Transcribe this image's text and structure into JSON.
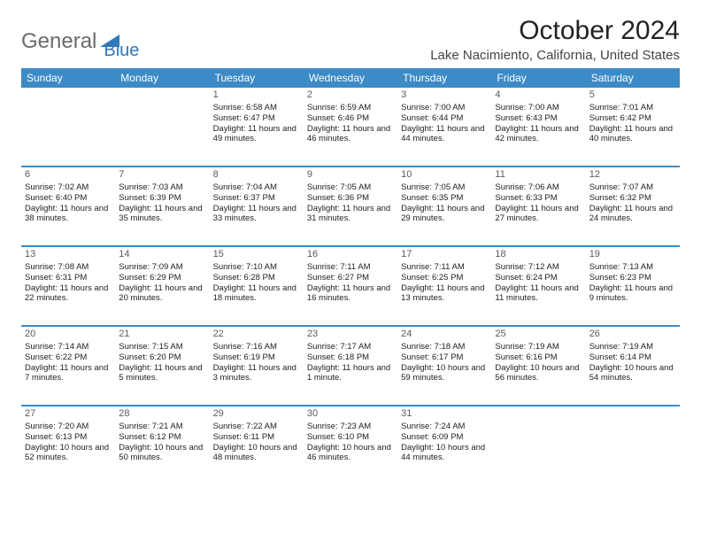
{
  "brand": {
    "part1": "General",
    "part2": "Blue"
  },
  "title": "October 2024",
  "location": "Lake Nacimiento, California, United States",
  "style": {
    "accent": "#3c8ac6",
    "header_text": "#ffffff",
    "body_text": "#222222",
    "weekday_fontsize": 12,
    "cell_fontsize": 9.5,
    "title_fontsize": 30,
    "location_fontsize": 15,
    "row_border_color": "#3c8ac6",
    "row_border_width": 2
  },
  "weekdays": [
    "Sunday",
    "Monday",
    "Tuesday",
    "Wednesday",
    "Thursday",
    "Friday",
    "Saturday"
  ],
  "cells": [
    [
      "",
      "",
      "1|Sunrise: 6:58 AM|Sunset: 6:47 PM|Daylight: 11 hours and 49 minutes.",
      "2|Sunrise: 6:59 AM|Sunset: 6:46 PM|Daylight: 11 hours and 46 minutes.",
      "3|Sunrise: 7:00 AM|Sunset: 6:44 PM|Daylight: 11 hours and 44 minutes.",
      "4|Sunrise: 7:00 AM|Sunset: 6:43 PM|Daylight: 11 hours and 42 minutes.",
      "5|Sunrise: 7:01 AM|Sunset: 6:42 PM|Daylight: 11 hours and 40 minutes."
    ],
    [
      "6|Sunrise: 7:02 AM|Sunset: 6:40 PM|Daylight: 11 hours and 38 minutes.",
      "7|Sunrise: 7:03 AM|Sunset: 6:39 PM|Daylight: 11 hours and 35 minutes.",
      "8|Sunrise: 7:04 AM|Sunset: 6:37 PM|Daylight: 11 hours and 33 minutes.",
      "9|Sunrise: 7:05 AM|Sunset: 6:36 PM|Daylight: 11 hours and 31 minutes.",
      "10|Sunrise: 7:05 AM|Sunset: 6:35 PM|Daylight: 11 hours and 29 minutes.",
      "11|Sunrise: 7:06 AM|Sunset: 6:33 PM|Daylight: 11 hours and 27 minutes.",
      "12|Sunrise: 7:07 AM|Sunset: 6:32 PM|Daylight: 11 hours and 24 minutes."
    ],
    [
      "13|Sunrise: 7:08 AM|Sunset: 6:31 PM|Daylight: 11 hours and 22 minutes.",
      "14|Sunrise: 7:09 AM|Sunset: 6:29 PM|Daylight: 11 hours and 20 minutes.",
      "15|Sunrise: 7:10 AM|Sunset: 6:28 PM|Daylight: 11 hours and 18 minutes.",
      "16|Sunrise: 7:11 AM|Sunset: 6:27 PM|Daylight: 11 hours and 16 minutes.",
      "17|Sunrise: 7:11 AM|Sunset: 6:25 PM|Daylight: 11 hours and 13 minutes.",
      "18|Sunrise: 7:12 AM|Sunset: 6:24 PM|Daylight: 11 hours and 11 minutes.",
      "19|Sunrise: 7:13 AM|Sunset: 6:23 PM|Daylight: 11 hours and 9 minutes."
    ],
    [
      "20|Sunrise: 7:14 AM|Sunset: 6:22 PM|Daylight: 11 hours and 7 minutes.",
      "21|Sunrise: 7:15 AM|Sunset: 6:20 PM|Daylight: 11 hours and 5 minutes.",
      "22|Sunrise: 7:16 AM|Sunset: 6:19 PM|Daylight: 11 hours and 3 minutes.",
      "23|Sunrise: 7:17 AM|Sunset: 6:18 PM|Daylight: 11 hours and 1 minute.",
      "24|Sunrise: 7:18 AM|Sunset: 6:17 PM|Daylight: 10 hours and 59 minutes.",
      "25|Sunrise: 7:19 AM|Sunset: 6:16 PM|Daylight: 10 hours and 56 minutes.",
      "26|Sunrise: 7:19 AM|Sunset: 6:14 PM|Daylight: 10 hours and 54 minutes."
    ],
    [
      "27|Sunrise: 7:20 AM|Sunset: 6:13 PM|Daylight: 10 hours and 52 minutes.",
      "28|Sunrise: 7:21 AM|Sunset: 6:12 PM|Daylight: 10 hours and 50 minutes.",
      "29|Sunrise: 7:22 AM|Sunset: 6:11 PM|Daylight: 10 hours and 48 minutes.",
      "30|Sunrise: 7:23 AM|Sunset: 6:10 PM|Daylight: 10 hours and 46 minutes.",
      "31|Sunrise: 7:24 AM|Sunset: 6:09 PM|Daylight: 10 hours and 44 minutes.",
      "",
      ""
    ]
  ]
}
